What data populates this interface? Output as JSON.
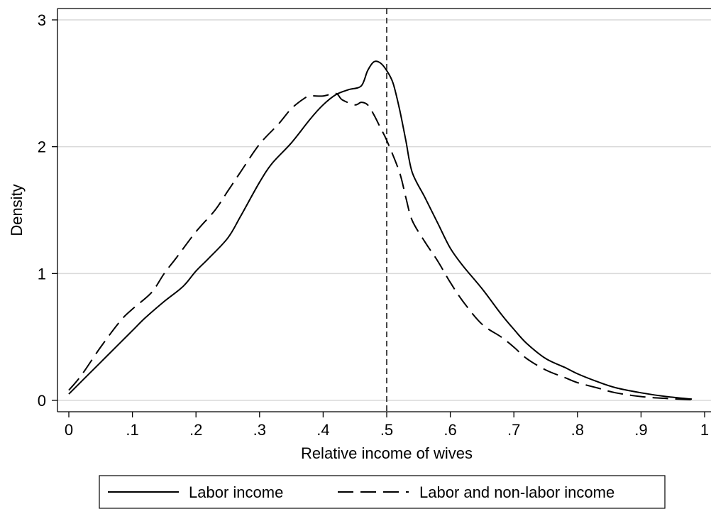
{
  "chart_data": {
    "type": "line",
    "xlabel": "Relative income of wives",
    "ylabel": "Density",
    "xlim": [
      0,
      1
    ],
    "ylim": [
      0,
      3
    ],
    "xticks": [
      {
        "value": 0,
        "label": "0"
      },
      {
        "value": 0.1,
        "label": ".1"
      },
      {
        "value": 0.2,
        "label": ".2"
      },
      {
        "value": 0.3,
        "label": ".3"
      },
      {
        "value": 0.4,
        "label": ".4"
      },
      {
        "value": 0.5,
        "label": ".5"
      },
      {
        "value": 0.6,
        "label": ".6"
      },
      {
        "value": 0.7,
        "label": ".7"
      },
      {
        "value": 0.8,
        "label": ".8"
      },
      {
        "value": 0.9,
        "label": ".9"
      },
      {
        "value": 1,
        "label": "1"
      }
    ],
    "yticks": [
      {
        "value": 0,
        "label": "0"
      },
      {
        "value": 1,
        "label": "1"
      },
      {
        "value": 2,
        "label": "2"
      },
      {
        "value": 3,
        "label": "3"
      }
    ],
    "grid": "horizontal",
    "reference_line": {
      "x": 0.5,
      "style": "dashed"
    },
    "legend_placement": "bottom",
    "series": [
      {
        "name": "Labor income",
        "style": "solid",
        "color": "#000000",
        "points": [
          [
            0.0,
            0.05
          ],
          [
            0.02,
            0.15
          ],
          [
            0.05,
            0.3
          ],
          [
            0.08,
            0.45
          ],
          [
            0.1,
            0.55
          ],
          [
            0.12,
            0.65
          ],
          [
            0.15,
            0.78
          ],
          [
            0.18,
            0.9
          ],
          [
            0.2,
            1.02
          ],
          [
            0.22,
            1.12
          ],
          [
            0.25,
            1.28
          ],
          [
            0.27,
            1.45
          ],
          [
            0.3,
            1.72
          ],
          [
            0.32,
            1.87
          ],
          [
            0.35,
            2.03
          ],
          [
            0.38,
            2.22
          ],
          [
            0.4,
            2.33
          ],
          [
            0.42,
            2.41
          ],
          [
            0.44,
            2.45
          ],
          [
            0.46,
            2.48
          ],
          [
            0.47,
            2.6
          ],
          [
            0.48,
            2.67
          ],
          [
            0.49,
            2.66
          ],
          [
            0.5,
            2.6
          ],
          [
            0.51,
            2.5
          ],
          [
            0.52,
            2.3
          ],
          [
            0.53,
            2.05
          ],
          [
            0.54,
            1.8
          ],
          [
            0.56,
            1.6
          ],
          [
            0.58,
            1.4
          ],
          [
            0.6,
            1.2
          ],
          [
            0.62,
            1.06
          ],
          [
            0.65,
            0.88
          ],
          [
            0.68,
            0.68
          ],
          [
            0.7,
            0.56
          ],
          [
            0.72,
            0.45
          ],
          [
            0.75,
            0.33
          ],
          [
            0.78,
            0.26
          ],
          [
            0.8,
            0.21
          ],
          [
            0.83,
            0.15
          ],
          [
            0.86,
            0.1
          ],
          [
            0.9,
            0.06
          ],
          [
            0.94,
            0.03
          ],
          [
            0.98,
            0.01
          ]
        ]
      },
      {
        "name": "Labor and non-labor income",
        "style": "dashed",
        "color": "#000000",
        "points": [
          [
            0.0,
            0.08
          ],
          [
            0.02,
            0.2
          ],
          [
            0.05,
            0.42
          ],
          [
            0.08,
            0.62
          ],
          [
            0.1,
            0.72
          ],
          [
            0.13,
            0.85
          ],
          [
            0.15,
            1.0
          ],
          [
            0.17,
            1.13
          ],
          [
            0.2,
            1.33
          ],
          [
            0.23,
            1.5
          ],
          [
            0.25,
            1.65
          ],
          [
            0.27,
            1.8
          ],
          [
            0.3,
            2.02
          ],
          [
            0.33,
            2.18
          ],
          [
            0.35,
            2.3
          ],
          [
            0.37,
            2.38
          ],
          [
            0.38,
            2.4
          ],
          [
            0.4,
            2.4
          ],
          [
            0.42,
            2.42
          ],
          [
            0.43,
            2.37
          ],
          [
            0.45,
            2.33
          ],
          [
            0.46,
            2.35
          ],
          [
            0.47,
            2.33
          ],
          [
            0.48,
            2.25
          ],
          [
            0.49,
            2.15
          ],
          [
            0.5,
            2.05
          ],
          [
            0.52,
            1.8
          ],
          [
            0.53,
            1.6
          ],
          [
            0.54,
            1.42
          ],
          [
            0.56,
            1.25
          ],
          [
            0.58,
            1.1
          ],
          [
            0.6,
            0.93
          ],
          [
            0.62,
            0.78
          ],
          [
            0.65,
            0.6
          ],
          [
            0.68,
            0.5
          ],
          [
            0.7,
            0.42
          ],
          [
            0.72,
            0.33
          ],
          [
            0.75,
            0.24
          ],
          [
            0.78,
            0.18
          ],
          [
            0.8,
            0.14
          ],
          [
            0.83,
            0.1
          ],
          [
            0.86,
            0.06
          ],
          [
            0.9,
            0.03
          ],
          [
            0.94,
            0.015
          ],
          [
            0.98,
            0.005
          ]
        ]
      }
    ]
  }
}
